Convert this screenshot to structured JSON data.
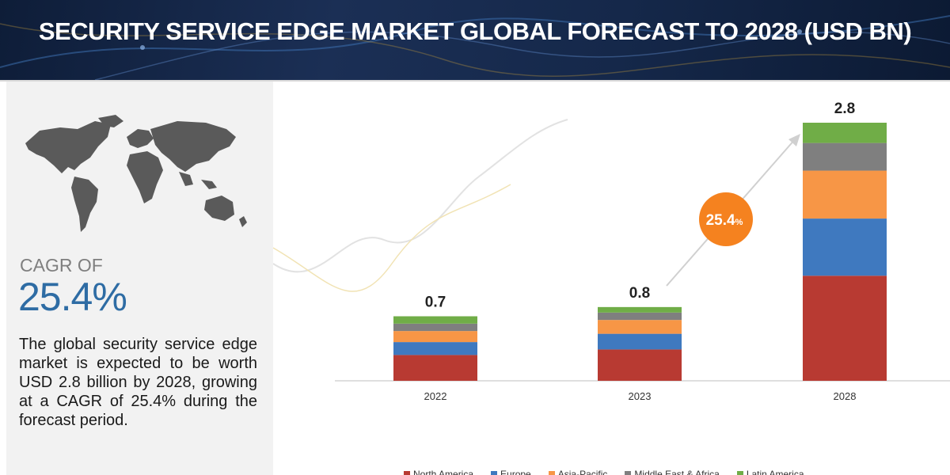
{
  "header": {
    "title": "SECURITY SERVICE EDGE MARKET GLOBAL FORECAST TO 2028 (USD BN)"
  },
  "summary": {
    "cagr_label": "CAGR OF",
    "cagr_value": "25.4%",
    "description": "The global security service edge market is expected to be worth USD 2.8 billion by 2028, growing at a CAGR of 25.4% during the forecast period."
  },
  "chart_data": {
    "type": "bar",
    "stacked": true,
    "categories": [
      "2022",
      "2023",
      "2028"
    ],
    "totals": [
      "0.7",
      "0.8",
      "2.8"
    ],
    "total_values": [
      0.7,
      0.8,
      2.8
    ],
    "series": [
      {
        "name": "North America",
        "color": "#b83a32",
        "values": [
          0.28,
          0.34,
          1.14
        ]
      },
      {
        "name": "Europe",
        "color": "#3f79bf",
        "values": [
          0.14,
          0.17,
          0.62
        ]
      },
      {
        "name": "Asia-Pacific",
        "color": "#f79646",
        "values": [
          0.12,
          0.15,
          0.52
        ]
      },
      {
        "name": "Middle East & Africa",
        "color": "#7f7f7f",
        "values": [
          0.08,
          0.08,
          0.3
        ]
      },
      {
        "name": "Latin America",
        "color": "#70ad47",
        "values": [
          0.08,
          0.06,
          0.22
        ]
      }
    ],
    "ylim": [
      0,
      2.8
    ],
    "grid": false,
    "legend_position": "bottom",
    "annotation": {
      "label": "25.4",
      "suffix": "%",
      "color": "#f5821f"
    }
  }
}
